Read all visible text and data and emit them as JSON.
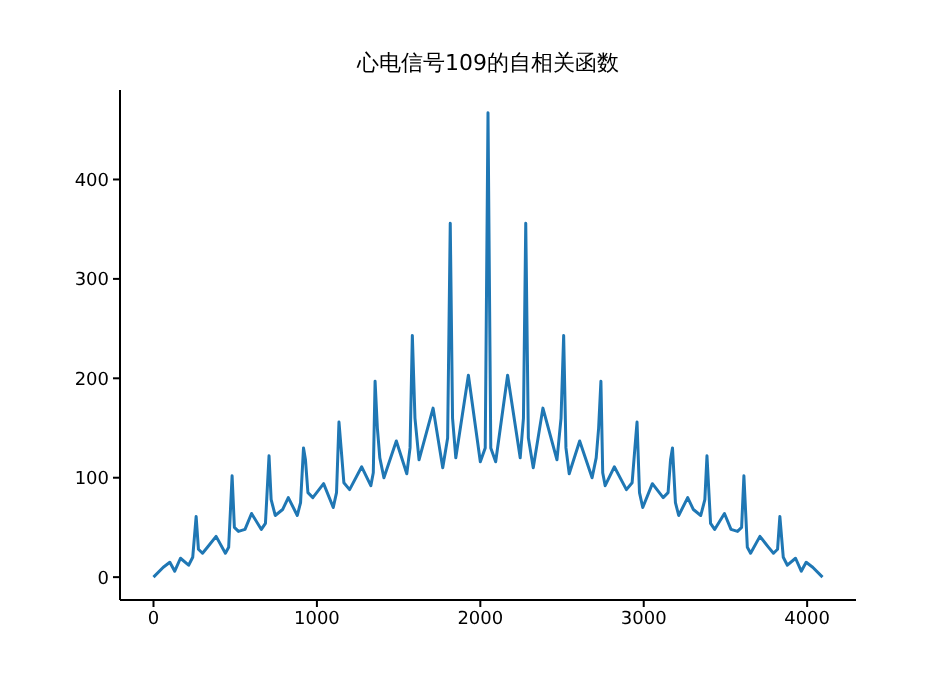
{
  "chart_data": {
    "type": "line",
    "title": "心电信号109的自相关函数",
    "x": [
      0,
      60,
      100,
      130,
      165,
      215,
      240,
      261,
      275,
      300,
      330,
      383,
      440,
      460,
      481,
      495,
      520,
      560,
      600,
      660,
      685,
      707,
      720,
      745,
      790,
      825,
      880,
      900,
      918,
      930,
      945,
      975,
      1041,
      1100,
      1120,
      1135,
      1148,
      1165,
      1200,
      1274,
      1330,
      1345,
      1356,
      1370,
      1385,
      1410,
      1486,
      1550,
      1570,
      1584,
      1600,
      1625,
      1711,
      1770,
      1800,
      1816,
      1830,
      1850,
      1927,
      2000,
      2030,
      2047,
      2064,
      2094,
      2167,
      2244,
      2264,
      2278,
      2294,
      2324,
      2383,
      2469,
      2494,
      2510,
      2524,
      2544,
      2608,
      2684,
      2709,
      2724,
      2738,
      2749,
      2764,
      2820,
      2894,
      2929,
      2946,
      2959,
      2974,
      2994,
      3053,
      3119,
      3149,
      3164,
      3176,
      3194,
      3214,
      3269,
      3304,
      3349,
      3374,
      3387,
      3409,
      3434,
      3494,
      3534,
      3574,
      3599,
      3613,
      3634,
      3654,
      3711,
      3764,
      3794,
      3819,
      3833,
      3854,
      3879,
      3929,
      3964,
      3994,
      4034,
      4094
    ],
    "series": [
      {
        "color": "#1f77b4",
        "values": [
          0,
          10,
          15,
          6,
          19,
          12,
          20,
          61,
          28,
          24,
          30,
          41,
          24,
          30,
          102,
          50,
          46,
          48,
          64,
          48,
          54,
          122,
          78,
          62,
          68,
          80,
          62,
          75,
          130,
          118,
          85,
          80,
          94,
          70,
          85,
          156,
          130,
          95,
          88,
          111,
          92,
          105,
          197,
          150,
          120,
          100,
          137,
          104,
          130,
          243,
          160,
          118,
          170,
          110,
          140,
          356,
          160,
          120,
          203,
          116,
          130,
          467,
          130,
          116,
          203,
          120,
          160,
          356,
          140,
          110,
          170,
          118,
          160,
          243,
          130,
          104,
          137,
          100,
          120,
          150,
          197,
          105,
          92,
          111,
          88,
          95,
          130,
          156,
          85,
          70,
          94,
          80,
          85,
          118,
          130,
          75,
          62,
          80,
          68,
          62,
          78,
          122,
          54,
          48,
          64,
          48,
          46,
          50,
          102,
          30,
          24,
          41,
          30,
          24,
          28,
          61,
          20,
          12,
          19,
          6,
          15,
          10,
          0
        ]
      }
    ],
    "xlim": [
      -205,
      4299
    ],
    "ylim": [
      -23,
      490
    ],
    "xticks": [
      0,
      1000,
      2000,
      3000,
      4000
    ],
    "yticks": [
      0,
      100,
      200,
      300,
      400
    ],
    "grid": false,
    "legend": false,
    "marker": "none",
    "line_style": "solid"
  }
}
